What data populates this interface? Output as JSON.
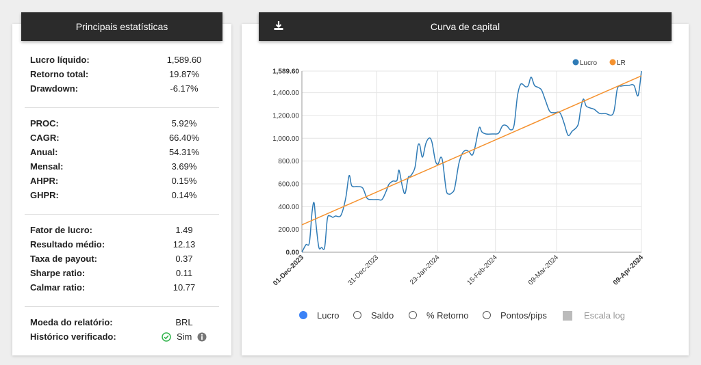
{
  "stats": {
    "title": "Principais estatísticas",
    "groups": [
      [
        {
          "label": "Lucro líquido:",
          "value": "1,589.60"
        },
        {
          "label": "Retorno total:",
          "value": "19.87%"
        },
        {
          "label": "Drawdown:",
          "value": "-6.17%"
        }
      ],
      [
        {
          "label": "PROC:",
          "value": "5.92%"
        },
        {
          "label": "CAGR:",
          "value": "66.40%"
        },
        {
          "label": "Anual:",
          "value": "54.31%"
        },
        {
          "label": "Mensal:",
          "value": "3.69%"
        },
        {
          "label": "AHPR:",
          "value": "0.15%"
        },
        {
          "label": "GHPR:",
          "value": "0.14%"
        }
      ],
      [
        {
          "label": "Fator de lucro:",
          "value": "1.49"
        },
        {
          "label": "Resultado médio:",
          "value": "12.13"
        },
        {
          "label": "Taxa de payout:",
          "value": "0.37"
        },
        {
          "label": "Sharpe ratio:",
          "value": "0.11"
        },
        {
          "label": "Calmar ratio:",
          "value": "10.77"
        }
      ],
      [
        {
          "label": "Moeda do relatório:",
          "value": "BRL"
        },
        {
          "label": "Histórico verificado:",
          "value": "Sim"
        }
      ]
    ]
  },
  "chart_panel": {
    "title": "Curva de capital"
  },
  "chart_data": {
    "type": "line",
    "series": [
      {
        "name": "Lucro",
        "color": "#2f7bb6",
        "x": [
          0,
          1.2,
          2.2,
          3.0,
          3.6,
          4.2,
          5.0,
          5.8,
          6.7,
          7.5,
          8.3,
          9.1,
          9.9,
          11.5,
          12.9,
          13.9,
          14.7,
          16.3,
          17.9,
          19.2,
          20.8,
          22.4,
          23.6,
          24.8,
          25.6,
          26.8,
          28.0,
          28.6,
          29.6,
          30.4,
          31.3,
          32.1,
          33.3,
          34.1,
          34.7,
          35.5,
          36.5,
          37.5,
          38.3,
          39.3,
          40.1,
          40.9,
          41.5,
          42.5,
          43.3,
          44.2,
          45.0,
          46.2,
          47.2,
          48.2,
          49.2,
          50.2,
          51.0,
          52.2,
          53.0,
          54.2,
          56.3,
          57.9,
          59.1,
          60.3,
          61.5,
          62.5,
          63.5,
          64.5,
          65.9,
          66.7,
          67.5,
          68.5,
          69.6,
          70.6,
          71.8,
          73.0,
          74.4,
          76.0,
          77.2,
          78.4,
          79.6,
          81.3,
          82.1,
          82.9,
          83.7,
          84.9,
          86.1,
          87.7,
          89.3,
          91.7,
          92.9,
          94.1,
          96.2,
          97.8,
          99.0,
          100
        ],
        "values": [
          0,
          66,
          84,
          354,
          432,
          234,
          42,
          42,
          42,
          294,
          318,
          306,
          318,
          324,
          474,
          672,
          582,
          576,
          564,
          474,
          462,
          462,
          462,
          534,
          594,
          624,
          630,
          720,
          576,
          516,
          654,
          672,
          744,
          924,
          942,
          834,
          954,
          1002,
          966,
          804,
          774,
          834,
          786,
          546,
          510,
          522,
          564,
          774,
          864,
          894,
          882,
          852,
          924,
          1092,
          1056,
          1038,
          1038,
          1044,
          1110,
          1110,
          1074,
          1116,
          1374,
          1476,
          1452,
          1464,
          1536,
          1464,
          1446,
          1422,
          1326,
          1236,
          1224,
          1224,
          1134,
          1026,
          1062,
          1116,
          1254,
          1344,
          1284,
          1266,
          1254,
          1218,
          1218,
          1218,
          1434,
          1458,
          1464,
          1464,
          1374,
          1589.6
        ]
      },
      {
        "name": "LR",
        "color": "#f5922f",
        "x": [
          0,
          100
        ],
        "values": [
          240,
          1548
        ]
      }
    ],
    "xlim": [
      0,
      100
    ],
    "xticks": [
      {
        "value": 0,
        "label": "01-Dec-2023"
      },
      {
        "value": 22,
        "label": "31-Dec-2023"
      },
      {
        "value": 40,
        "label": "23-Jan-2024"
      },
      {
        "value": 57,
        "label": "15-Feb-2024"
      },
      {
        "value": 75,
        "label": "09-Mar-2024"
      },
      {
        "value": 100,
        "label": "09-Apr-2024"
      }
    ],
    "ylim": [
      0,
      1589.6
    ],
    "yticks": [
      {
        "value": 0,
        "label": "0.00"
      },
      {
        "value": 200,
        "label": "200.00"
      },
      {
        "value": 400,
        "label": "400.00"
      },
      {
        "value": 600,
        "label": "600.00"
      },
      {
        "value": 800,
        "label": "800.00"
      },
      {
        "value": 1000,
        "label": "1,000.00"
      },
      {
        "value": 1200,
        "label": "1,200.00"
      },
      {
        "value": 1400,
        "label": "1,400.00"
      },
      {
        "value": 1589.6,
        "label": "1,589.60"
      }
    ],
    "grid": true,
    "legend": "top-right"
  },
  "controls": {
    "radios": [
      {
        "label": "Lucro",
        "checked": true
      },
      {
        "label": "Saldo",
        "checked": false
      },
      {
        "label": "% Retorno",
        "checked": false
      },
      {
        "label": "Pontos/pips",
        "checked": false
      }
    ],
    "checkbox": {
      "label": "Escala log",
      "checked": false
    }
  }
}
